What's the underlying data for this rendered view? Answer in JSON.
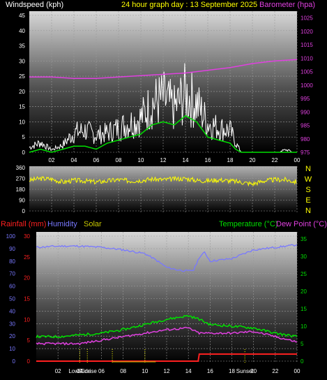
{
  "header": {
    "left_title": "Windspeed (kph)",
    "center_title": "24 hour graph day : 13 September 2025",
    "right_title": "Barometer (hpa)"
  },
  "bottom_header": {
    "rainfall": "Rainfall (mm)",
    "humidity": "Humidity",
    "solar": "Solar",
    "temperature": "Temperature (°C)",
    "dewpoint": "Dew Point (°C)"
  },
  "colors": {
    "wind_gust": "#ffffff",
    "wind_avg": "#00e000",
    "barometer": "#e040e0",
    "wind_dir": "#ffff00",
    "rain": "#ff2020",
    "humidity": "#7878ff",
    "solar": "#c8c800",
    "temperature": "#00e000",
    "dewpoint": "#e040e0"
  },
  "chart_data": [
    {
      "type": "line",
      "x_ticks": [
        "02",
        "04",
        "06",
        "08",
        "10",
        "12",
        "14",
        "16",
        "18",
        "20",
        "22",
        "00"
      ],
      "y_left": {
        "ticks": [
          0,
          5,
          10,
          15,
          20,
          25,
          30,
          35,
          40,
          45
        ],
        "ylim": [
          0,
          45
        ]
      },
      "y_right": {
        "ticks": [
          975,
          980,
          985,
          990,
          995,
          1000,
          1005,
          1010,
          1015,
          1020,
          1025
        ],
        "ylim": [
          975,
          1027.5
        ]
      },
      "series": [
        {
          "name": "Windspeed (kph)",
          "axis": "left",
          "hours": [
            0,
            1,
            2,
            3,
            4,
            5,
            6,
            7,
            8,
            9,
            10,
            11,
            12,
            13,
            14,
            15,
            16,
            17,
            18,
            18.5,
            19,
            20,
            21,
            22,
            23,
            24
          ],
          "values": [
            2,
            4,
            1,
            3,
            8,
            9,
            7,
            8,
            10,
            12,
            14,
            20,
            22,
            18,
            24,
            20,
            12,
            10,
            9,
            4,
            0,
            0,
            0,
            0,
            1,
            0
          ]
        },
        {
          "name": "Average wind",
          "axis": "left",
          "hours": [
            0,
            1,
            2,
            3,
            4,
            5,
            6,
            7,
            8,
            9,
            10,
            11,
            12,
            13,
            14,
            15,
            16,
            17,
            18,
            18.5,
            19,
            24
          ],
          "values": [
            0,
            1,
            0,
            1,
            2,
            2,
            1,
            3,
            4,
            5,
            6,
            9,
            10,
            9,
            12,
            10,
            5,
            4,
            3,
            1,
            0,
            0
          ]
        },
        {
          "name": "Barometer (hpa)",
          "axis": "right",
          "hours": [
            0,
            2,
            4,
            6,
            8,
            10,
            12,
            14,
            16,
            18,
            20,
            22,
            24
          ],
          "values": [
            1003,
            1003,
            1002.5,
            1002.5,
            1003,
            1003.5,
            1004,
            1004.5,
            1005.5,
            1006.5,
            1008,
            1009,
            1009.5
          ]
        }
      ]
    },
    {
      "type": "line",
      "x_ticks": [],
      "y_left": {
        "ticks": [
          0,
          90,
          180,
          270,
          360
        ],
        "ylim": [
          0,
          360
        ]
      },
      "compass_labels": [
        "N",
        "W",
        "S",
        "E",
        "N"
      ],
      "series": [
        {
          "name": "Wind direction",
          "hours": [
            0,
            1,
            2,
            3,
            4,
            5,
            6,
            7,
            8,
            9,
            10,
            11,
            12,
            13,
            14,
            15,
            16,
            17,
            18,
            19,
            20,
            21,
            22,
            23,
            24
          ],
          "values": [
            255,
            270,
            265,
            240,
            255,
            250,
            240,
            250,
            260,
            250,
            255,
            265,
            260,
            265,
            270,
            255,
            250,
            260,
            250,
            240,
            225,
            250,
            260,
            260,
            240
          ]
        }
      ]
    },
    {
      "type": "line",
      "x_ticks": [
        "02",
        "04",
        "06",
        "08",
        "10",
        "12",
        "14",
        "16",
        "18",
        "20",
        "22",
        "00"
      ],
      "x_annotations": [
        "Low Tide",
        "Sunrise",
        "Sunset"
      ],
      "y_left_humidity": {
        "ticks": [
          0,
          10,
          20,
          30,
          40,
          50,
          60,
          70,
          80,
          90,
          100
        ],
        "ylim": [
          0,
          100
        ]
      },
      "y_left_rain": {
        "ticks": [
          0,
          5,
          10,
          15,
          20,
          25,
          30
        ],
        "ylim": [
          0,
          30
        ]
      },
      "y_right": {
        "ticks": [
          0,
          5,
          10,
          15,
          20,
          25,
          30,
          35
        ],
        "ylim": [
          0,
          37
        ]
      },
      "series": [
        {
          "name": "Humidity",
          "axis": "humidity",
          "hours": [
            0,
            2,
            4,
            6,
            8,
            10,
            11,
            12,
            13,
            14,
            14.5,
            15,
            15.5,
            16,
            18,
            20,
            22,
            24
          ],
          "values": [
            91,
            92,
            92,
            91,
            89,
            86,
            81,
            75,
            73,
            72,
            73,
            83,
            87,
            80,
            82,
            89,
            91,
            93
          ]
        },
        {
          "name": "Temperature (°C)",
          "axis": "temp",
          "hours": [
            0,
            2,
            4,
            6,
            8,
            10,
            12,
            14,
            15,
            16,
            18,
            20,
            22,
            24
          ],
          "values": [
            7,
            7,
            7.5,
            8,
            9,
            10.5,
            12,
            13,
            12,
            10.5,
            10,
            9.5,
            8,
            7
          ]
        },
        {
          "name": "Dew Point (°C)",
          "axis": "temp",
          "hours": [
            0,
            2,
            4,
            6,
            8,
            10,
            12,
            14,
            15,
            16,
            18,
            20,
            22,
            24
          ],
          "values": [
            5,
            5,
            5,
            6,
            7,
            8,
            9,
            9.5,
            8,
            8,
            8,
            8.5,
            7,
            5.5
          ]
        },
        {
          "name": "Rainfall (mm)",
          "axis": "rain",
          "hours": [
            0,
            14.9,
            15,
            24
          ],
          "values": [
            0,
            0,
            1.7,
            1.7
          ]
        },
        {
          "name": "Solar",
          "axis": "solar",
          "hours": [
            7,
            11
          ],
          "values": [
            0.3,
            0.3
          ]
        }
      ]
    }
  ]
}
